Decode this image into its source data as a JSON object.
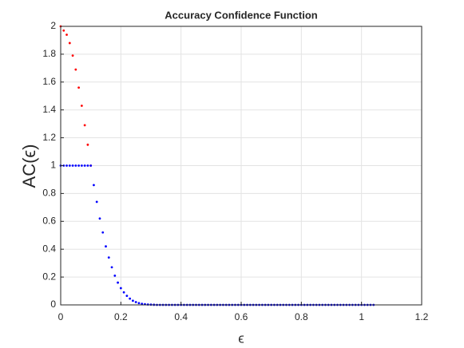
{
  "chart_data": {
    "type": "scatter",
    "title": "Accuracy Confidence Function",
    "x_label": "ϵ",
    "y_label": "AC(ϵ)",
    "xlim": [
      0,
      1.2
    ],
    "ylim": [
      0,
      2
    ],
    "xticks": [
      0,
      0.2,
      0.4,
      0.6,
      0.8,
      1,
      1.2
    ],
    "yticks": [
      0,
      0.2,
      0.4,
      0.6,
      0.8,
      1,
      1.2,
      1.4,
      1.6,
      1.8,
      2
    ],
    "grid": true,
    "series": [
      {
        "color": "#ff0000",
        "x": [
          0,
          0.01,
          0.02,
          0.03,
          0.04,
          0.05,
          0.06,
          0.07,
          0.08,
          0.09,
          0.1
        ],
        "values": [
          2,
          1.97,
          1.94,
          1.88,
          1.79,
          1.69,
          1.56,
          1.43,
          1.29,
          1.15,
          1
        ]
      },
      {
        "color": "#0000ff",
        "x": [
          0,
          0.01,
          0.02,
          0.03,
          0.04,
          0.05,
          0.06,
          0.07,
          0.08,
          0.09,
          0.1,
          0.11,
          0.12,
          0.13,
          0.14,
          0.15,
          0.16,
          0.17,
          0.18,
          0.19,
          0.2,
          0.21,
          0.22,
          0.23,
          0.24,
          0.25,
          0.26,
          0.27,
          0.28,
          0.29,
          0.3,
          0.31,
          0.32,
          0.33,
          0.34,
          0.35,
          0.36,
          0.37,
          0.38,
          0.39,
          0.4,
          0.41,
          0.42,
          0.43,
          0.44,
          0.45,
          0.46,
          0.47,
          0.48,
          0.49,
          0.5,
          0.51,
          0.52,
          0.53,
          0.54,
          0.55,
          0.56,
          0.57,
          0.58,
          0.59,
          0.6,
          0.61,
          0.62,
          0.63,
          0.64,
          0.65,
          0.66,
          0.67,
          0.68,
          0.69,
          0.7,
          0.71,
          0.72,
          0.73,
          0.74,
          0.75,
          0.76,
          0.77,
          0.78,
          0.79,
          0.8,
          0.81,
          0.82,
          0.83,
          0.84,
          0.85,
          0.86,
          0.87,
          0.88,
          0.89,
          0.9,
          0.91,
          0.92,
          0.93,
          0.94,
          0.95,
          0.96,
          0.97,
          0.98,
          0.99,
          1,
          1.01,
          1.02,
          1.03,
          1.04
        ],
        "values": [
          1,
          1,
          1,
          1,
          1,
          1,
          1,
          1,
          1,
          1,
          1,
          0.86,
          0.74,
          0.62,
          0.52,
          0.42,
          0.34,
          0.27,
          0.21,
          0.16,
          0.12,
          0.09,
          0.065,
          0.045,
          0.03,
          0.02,
          0.013,
          0.008,
          0.005,
          0.003,
          0.002,
          0.001,
          0,
          0,
          0,
          0,
          0,
          0,
          0,
          0,
          0,
          0,
          0,
          0,
          0,
          0,
          0,
          0,
          0,
          0,
          0,
          0,
          0,
          0,
          0,
          0,
          0,
          0,
          0,
          0,
          0,
          0,
          0,
          0,
          0,
          0,
          0,
          0,
          0,
          0,
          0,
          0,
          0,
          0,
          0,
          0,
          0,
          0,
          0,
          0,
          0,
          0,
          0,
          0,
          0,
          0,
          0,
          0,
          0,
          0,
          0,
          0,
          0,
          0,
          0,
          0,
          0,
          0,
          0,
          0,
          0,
          0,
          0,
          0,
          0
        ]
      }
    ]
  }
}
